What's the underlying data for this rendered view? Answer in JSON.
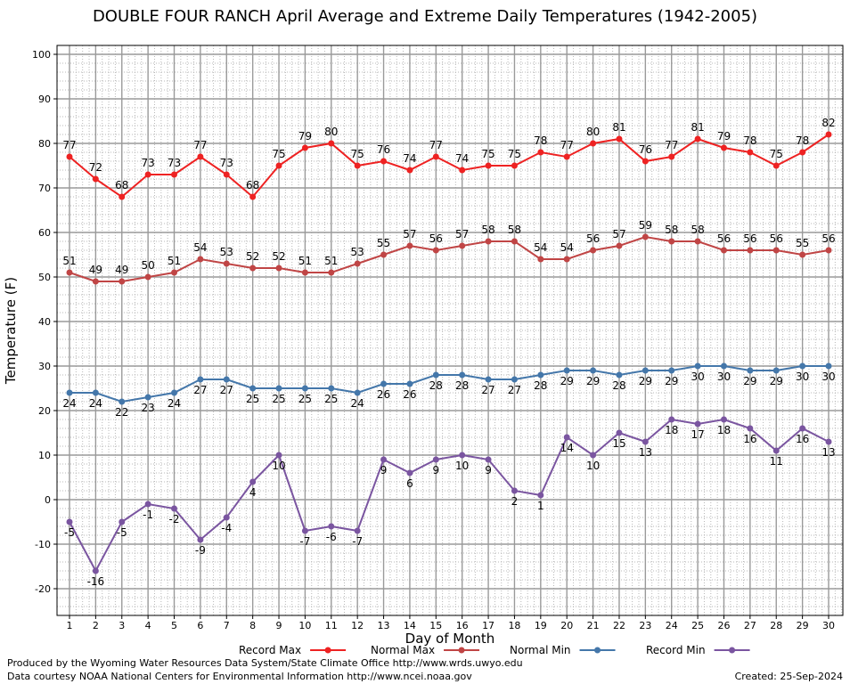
{
  "chart_data": {
    "type": "line",
    "title": "DOUBLE FOUR RANCH April Average and Extreme Daily Temperatures (1942-2005)",
    "xlabel": "Day of Month",
    "ylabel": "Temperature (F)",
    "ylim": [
      -26,
      102
    ],
    "yticks": [
      -20,
      -10,
      0,
      10,
      20,
      30,
      40,
      50,
      60,
      70,
      80,
      90,
      100
    ],
    "xticks": [
      1,
      2,
      3,
      4,
      5,
      6,
      7,
      8,
      9,
      10,
      11,
      12,
      13,
      14,
      15,
      16,
      17,
      18,
      19,
      20,
      21,
      22,
      23,
      24,
      25,
      26,
      27,
      28,
      29,
      30
    ],
    "grid": true,
    "legend_position": "bottom",
    "x": [
      1,
      2,
      3,
      4,
      5,
      6,
      7,
      8,
      9,
      10,
      11,
      12,
      13,
      14,
      15,
      16,
      17,
      18,
      19,
      20,
      21,
      22,
      23,
      24,
      25,
      26,
      27,
      28,
      29,
      30
    ],
    "series": [
      {
        "name": "Record Max",
        "color": "#ee2222",
        "label_pos": "above",
        "values": [
          77,
          72,
          68,
          73,
          73,
          77,
          73,
          68,
          75,
          79,
          80,
          75,
          76,
          74,
          77,
          74,
          75,
          75,
          78,
          77,
          80,
          81,
          76,
          77,
          81,
          79,
          78,
          75,
          78,
          82
        ]
      },
      {
        "name": "Normal Max",
        "color": "#c04545",
        "label_pos": "above",
        "values": [
          51,
          49,
          49,
          50,
          51,
          54,
          53,
          52,
          52,
          51,
          51,
          53,
          55,
          57,
          56,
          57,
          58,
          58,
          54,
          54,
          56,
          57,
          59,
          58,
          58,
          56,
          56,
          56,
          55,
          56
        ]
      },
      {
        "name": "Normal Min",
        "color": "#4477aa",
        "label_pos": "below",
        "values": [
          24,
          24,
          22,
          23,
          24,
          27,
          27,
          25,
          25,
          25,
          25,
          24,
          26,
          26,
          28,
          28,
          27,
          27,
          28,
          29,
          29,
          28,
          29,
          29,
          30,
          30,
          29,
          29,
          30,
          30
        ]
      },
      {
        "name": "Record Min",
        "color": "#7a55a0",
        "label_pos": "below",
        "values": [
          -5,
          -16,
          -5,
          -1,
          -2,
          -9,
          -4,
          4,
          10,
          -7,
          -6,
          -7,
          9,
          6,
          9,
          10,
          9,
          2,
          1,
          14,
          10,
          15,
          13,
          18,
          17,
          18,
          16,
          11,
          16,
          13
        ]
      }
    ]
  },
  "footer": {
    "produced": "Produced by the Wyoming Water Resources Data System/State Climate Office http://www.wrds.uwyo.edu",
    "courtesy": "Data courtesy NOAA National Centers for Environmental Information http://www.ncei.noaa.gov",
    "created": "Created:  25-Sep-2024"
  }
}
